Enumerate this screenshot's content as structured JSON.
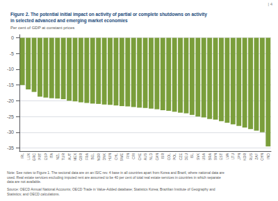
{
  "chart_data": {
    "type": "bar",
    "title": "Figure 2. The potential initial impact on activity of partial or complete shutdowns on activity\nin selected advanced and emerging market economies",
    "subtitle": "Per cent of GDP at constant prices",
    "annotations": [
      "| 4",
      "Note: See notes to Figure 1. The sectoral data are on an ISIC rev. 4 base in all countries apart from Korea and Brazil, where national data are\nused. Real estate services excluding imputed rent are assumed to be 40 per cent of total real estate services in countries in which separate\ndata are not available.",
      "Source: OECD Annual National Accounts; OECD Trade in Value-Added database; Statistics Korea; Brazilian Institute of Geography and\nStatistics; and OECD calculations."
    ],
    "categories": [
      "IRL",
      "LUX",
      "GRC",
      "PRT",
      "ESP",
      "ITA",
      "NZL",
      "TUR",
      "AUT",
      "MEX",
      "GBR",
      "FRA",
      "BEL",
      "NOR",
      "DNK",
      "HUN",
      "CHL",
      "SWE",
      "FIN",
      "CRI",
      "CHE",
      "AUS",
      "NLD",
      "CAN",
      "ISR",
      "COL",
      "POL",
      "CZE",
      "DEU",
      "ISL",
      "SVK",
      "USA",
      "BRA",
      "SVN",
      "EST",
      "LVA",
      "LTU",
      "JPN",
      "KOR",
      "RUS",
      "ZAF",
      "CHN",
      "IND"
    ],
    "values": [
      -15.0,
      -16.4,
      -17.2,
      -18.7,
      -19.0,
      -19.2,
      -19.3,
      -19.5,
      -20.0,
      -20.2,
      -20.5,
      -20.7,
      -20.9,
      -21.0,
      -21.2,
      -21.3,
      -21.5,
      -21.7,
      -21.8,
      -22.0,
      -22.2,
      -22.3,
      -22.5,
      -22.7,
      -23.0,
      -23.2,
      -23.5,
      -23.8,
      -24.0,
      -24.5,
      -25.0,
      -25.3,
      -25.8,
      -26.0,
      -26.5,
      -27.0,
      -27.5,
      -28.0,
      -28.5,
      -29.0,
      -29.5,
      -30.0,
      -34.5
    ],
    "color": "#7a9e3b",
    "ylim": [
      -36,
      1
    ],
    "yticks": [
      0,
      -5,
      -10,
      -15,
      -20,
      -25,
      -30,
      -35
    ],
    "grid": true
  }
}
